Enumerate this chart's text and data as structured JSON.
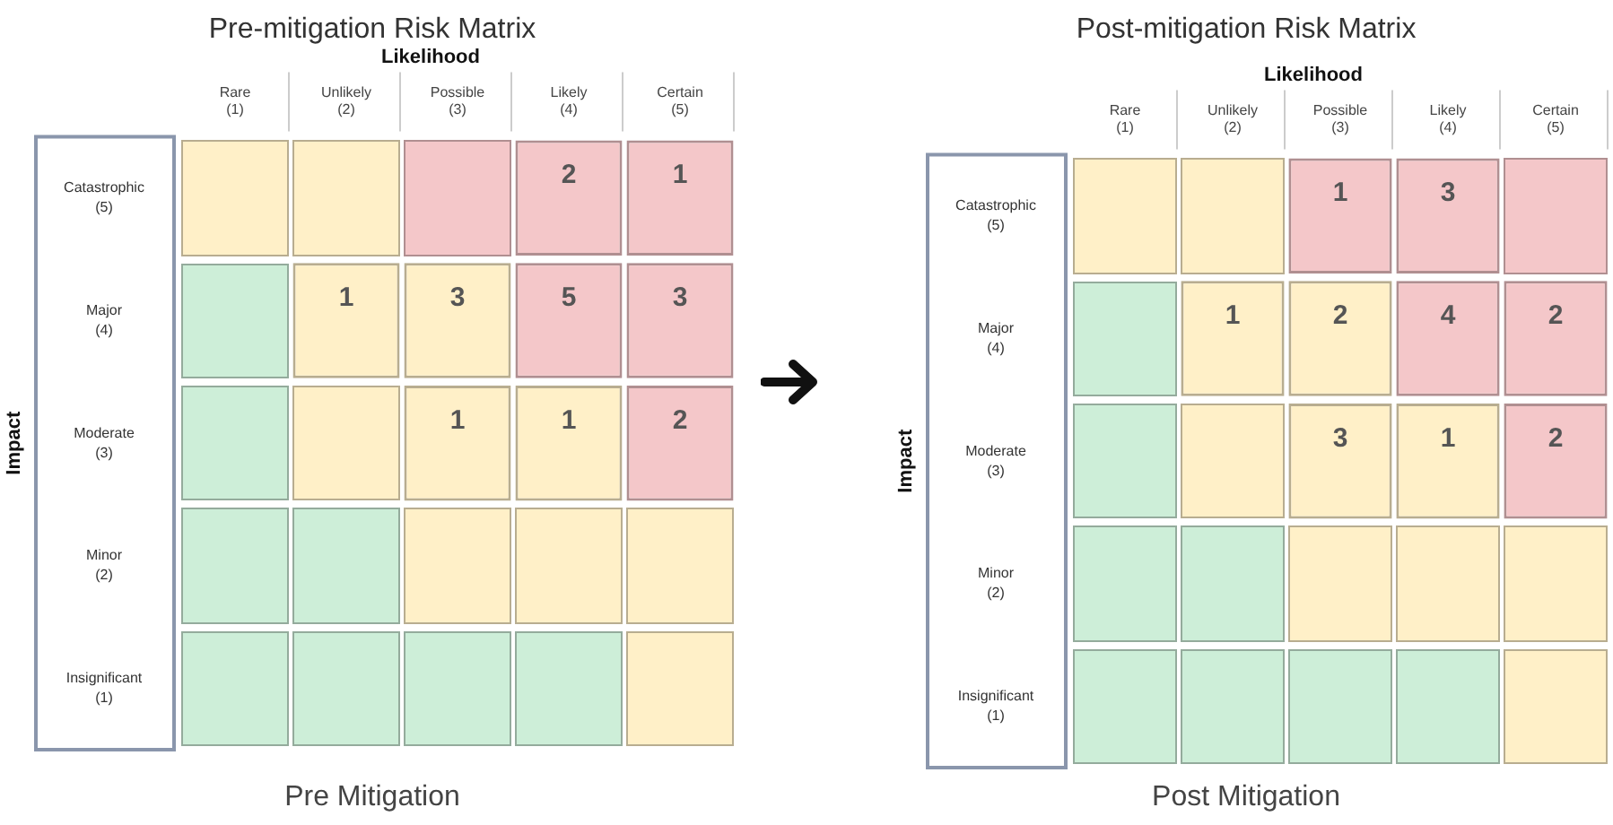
{
  "chart_data": [
    {
      "type": "heatmap",
      "title": "Pre-mitigation Risk Matrix",
      "xlabel": "Likelihood",
      "ylabel": "Impact",
      "annotations": [
        "Pre Mitigation"
      ],
      "categories": [
        "Rare (1)",
        "Unlikely (2)",
        "Possible (3)",
        "Likely (4)",
        "Certain (5)"
      ],
      "y_categories": [
        "Catastrophic (5)",
        "Major (4)",
        "Moderate (3)",
        "Minor (2)",
        "Insignificant (1)"
      ],
      "cells": [
        [
          null,
          null,
          null,
          2,
          1
        ],
        [
          null,
          1,
          3,
          5,
          3
        ],
        [
          null,
          null,
          1,
          1,
          2
        ],
        [
          null,
          null,
          null,
          null,
          null
        ],
        [
          null,
          null,
          null,
          null,
          null
        ]
      ],
      "colors": [
        [
          "#fff0c8",
          "#fff0c8",
          "#f4c7c9",
          "#f4c7c9",
          "#f4c7c9"
        ],
        [
          "#cdeed8",
          "#fff0c8",
          "#fff0c8",
          "#f4c7c9",
          "#f4c7c9"
        ],
        [
          "#cdeed8",
          "#fff0c8",
          "#fff0c8",
          "#fff0c8",
          "#f4c7c9"
        ],
        [
          "#cdeed8",
          "#cdeed8",
          "#fff0c8",
          "#fff0c8",
          "#fff0c8"
        ],
        [
          "#cdeed8",
          "#cdeed8",
          "#cdeed8",
          "#cdeed8",
          "#fff0c8"
        ]
      ],
      "data_labels": true
    },
    {
      "type": "heatmap",
      "title": "Post-mitigation Risk Matrix",
      "xlabel": "Likelihood",
      "ylabel": "Impact",
      "annotations": [
        "Post Mitigation"
      ],
      "categories": [
        "Rare (1)",
        "Unlikely (2)",
        "Possible (3)",
        "Likely (4)",
        "Certain (5)"
      ],
      "y_categories": [
        "Catastrophic (5)",
        "Major (4)",
        "Moderate (3)",
        "Minor (2)",
        "Insignificant (1)"
      ],
      "cells": [
        [
          null,
          null,
          1,
          3,
          null
        ],
        [
          null,
          1,
          2,
          4,
          2
        ],
        [
          null,
          null,
          3,
          1,
          2
        ],
        [
          null,
          null,
          null,
          null,
          null
        ],
        [
          null,
          null,
          null,
          null,
          null
        ]
      ],
      "colors": [
        [
          "#fff0c8",
          "#fff0c8",
          "#f4c7c9",
          "#f4c7c9",
          "#f4c7c9"
        ],
        [
          "#cdeed8",
          "#fff0c8",
          "#fff0c8",
          "#f4c7c9",
          "#f4c7c9"
        ],
        [
          "#cdeed8",
          "#fff0c8",
          "#fff0c8",
          "#fff0c8",
          "#f4c7c9"
        ],
        [
          "#cdeed8",
          "#cdeed8",
          "#fff0c8",
          "#fff0c8",
          "#fff0c8"
        ],
        [
          "#cdeed8",
          "#cdeed8",
          "#cdeed8",
          "#cdeed8",
          "#fff0c8"
        ]
      ],
      "data_labels": true
    }
  ]
}
